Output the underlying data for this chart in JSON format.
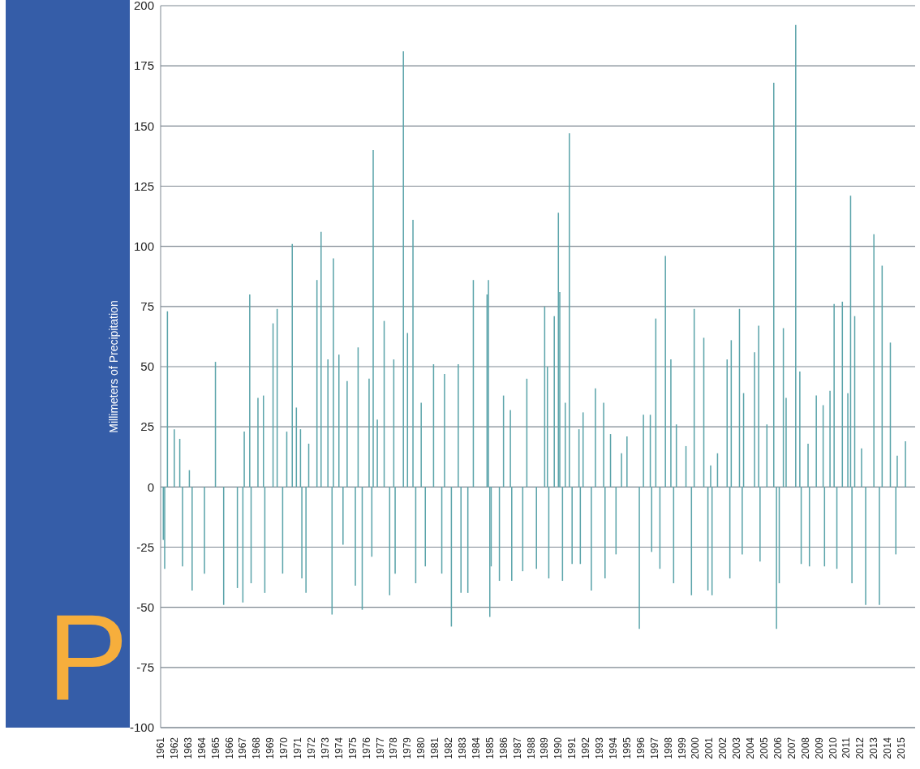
{
  "chart_data": {
    "type": "bar",
    "ylabel": "Millimeters of Precipitation",
    "annotations": [
      "P"
    ],
    "x": [
      1961.2,
      1961.3,
      1961.5,
      1962.0,
      1962.4,
      1962.6,
      1963.1,
      1963.3,
      1964.2,
      1965.0,
      1965.6,
      1966.6,
      1967.0,
      1967.1,
      1967.5,
      1967.6,
      1968.1,
      1968.5,
      1968.6,
      1969.2,
      1969.5,
      1969.9,
      1970.2,
      1970.6,
      1970.9,
      1971.2,
      1971.3,
      1971.6,
      1971.8,
      1972.4,
      1972.7,
      1973.2,
      1973.5,
      1973.6,
      1974.0,
      1974.3,
      1974.6,
      1975.2,
      1975.4,
      1975.7,
      1976.2,
      1976.4,
      1976.5,
      1976.8,
      1977.3,
      1977.7,
      1978.0,
      1978.1,
      1978.7,
      1979.0,
      1979.4,
      1979.6,
      1980.0,
      1980.3,
      1980.9,
      1981.5,
      1981.7,
      1982.2,
      1982.7,
      1982.9,
      1983.4,
      1983.8,
      1984.8,
      1984.9,
      1985.0,
      1985.1,
      1985.7,
      1986.0,
      1986.5,
      1986.6,
      1987.4,
      1987.7,
      1988.4,
      1989.0,
      1989.2,
      1989.3,
      1989.7,
      1990.0,
      1990.1,
      1990.3,
      1990.5,
      1990.8,
      1991.0,
      1991.5,
      1991.6,
      1991.8,
      1992.4,
      1992.7,
      1993.3,
      1993.4,
      1993.8,
      1994.2,
      1994.6,
      1995.0,
      1995.9,
      1996.2,
      1996.7,
      1996.8,
      1997.1,
      1997.4,
      1997.8,
      1998.2,
      1998.4,
      1998.6,
      1999.3,
      1999.7,
      1999.9,
      2000.6,
      2000.9,
      2001.1,
      2001.2,
      2001.6,
      2002.3,
      2002.5,
      2002.6,
      2003.2,
      2003.4,
      2003.5,
      2004.3,
      2004.6,
      2004.7,
      2005.2,
      2005.7,
      2005.9,
      2006.1,
      2006.4,
      2006.6,
      2007.3,
      2007.6,
      2007.7,
      2008.2,
      2008.3,
      2008.8,
      2009.3,
      2009.4,
      2009.8,
      2010.1,
      2010.3,
      2010.7,
      2011.1,
      2011.3,
      2011.4,
      2011.6,
      2012.1,
      2012.4,
      2013.0,
      2013.4,
      2013.6,
      2014.2,
      2014.6,
      2014.7,
      2015.3
    ],
    "series": [
      {
        "color": "#5ba4aa",
        "values": [
          -22,
          -34,
          73,
          24,
          20,
          -33,
          7,
          -43,
          -36,
          52,
          -49,
          -42,
          -48,
          23,
          80,
          -40,
          37,
          38,
          -44,
          68,
          74,
          -36,
          23,
          101,
          33,
          24,
          -38,
          -44,
          18,
          86,
          106,
          53,
          -53,
          95,
          55,
          -24,
          44,
          -41,
          58,
          -51,
          45,
          -29,
          140,
          28,
          69,
          -45,
          53,
          -36,
          181,
          64,
          111,
          -40,
          35,
          -33,
          51,
          -36,
          47,
          -58,
          51,
          -44,
          -44,
          86,
          80,
          86,
          -54,
          -33,
          -39,
          38,
          32,
          -39,
          -35,
          45,
          -34,
          75,
          50,
          -38,
          71,
          114,
          81,
          -39,
          35,
          147,
          -32,
          24,
          -32,
          31,
          -43,
          41,
          35,
          -38,
          22,
          -28,
          14,
          21,
          -59,
          30,
          30,
          -27,
          70,
          -34,
          96,
          53,
          -40,
          26,
          17,
          -45,
          74,
          62,
          -43,
          9,
          -45,
          14,
          53,
          -38,
          61,
          74,
          -28,
          39,
          56,
          67,
          -31,
          26,
          168,
          -59,
          -40,
          66,
          37,
          192,
          48,
          -32,
          18,
          -33,
          38,
          34,
          -33,
          40,
          76,
          -34,
          77,
          39,
          121,
          -40,
          71,
          16,
          -49,
          105,
          -49,
          92,
          60,
          -28,
          13,
          19
        ]
      }
    ],
    "xlim": [
      1961,
      2016
    ],
    "xticks": [
      1961,
      1962,
      1963,
      1964,
      1965,
      1966,
      1967,
      1968,
      1969,
      1970,
      1971,
      1972,
      1973,
      1974,
      1975,
      1976,
      1977,
      1978,
      1979,
      1980,
      1981,
      1982,
      1983,
      1984,
      1985,
      1986,
      1987,
      1988,
      1989,
      1990,
      1991,
      1992,
      1993,
      1994,
      1995,
      1996,
      1997,
      1998,
      1999,
      2000,
      2001,
      2002,
      2003,
      2004,
      2005,
      2006,
      2007,
      2008,
      2009,
      2010,
      2011,
      2012,
      2013,
      2014,
      2015
    ],
    "ylim": [
      -100,
      200
    ],
    "yticks": [
      -100,
      -75,
      -50,
      -25,
      0,
      25,
      50,
      75,
      100,
      125,
      150,
      175,
      200
    ],
    "grid": "y",
    "legend": false
  }
}
